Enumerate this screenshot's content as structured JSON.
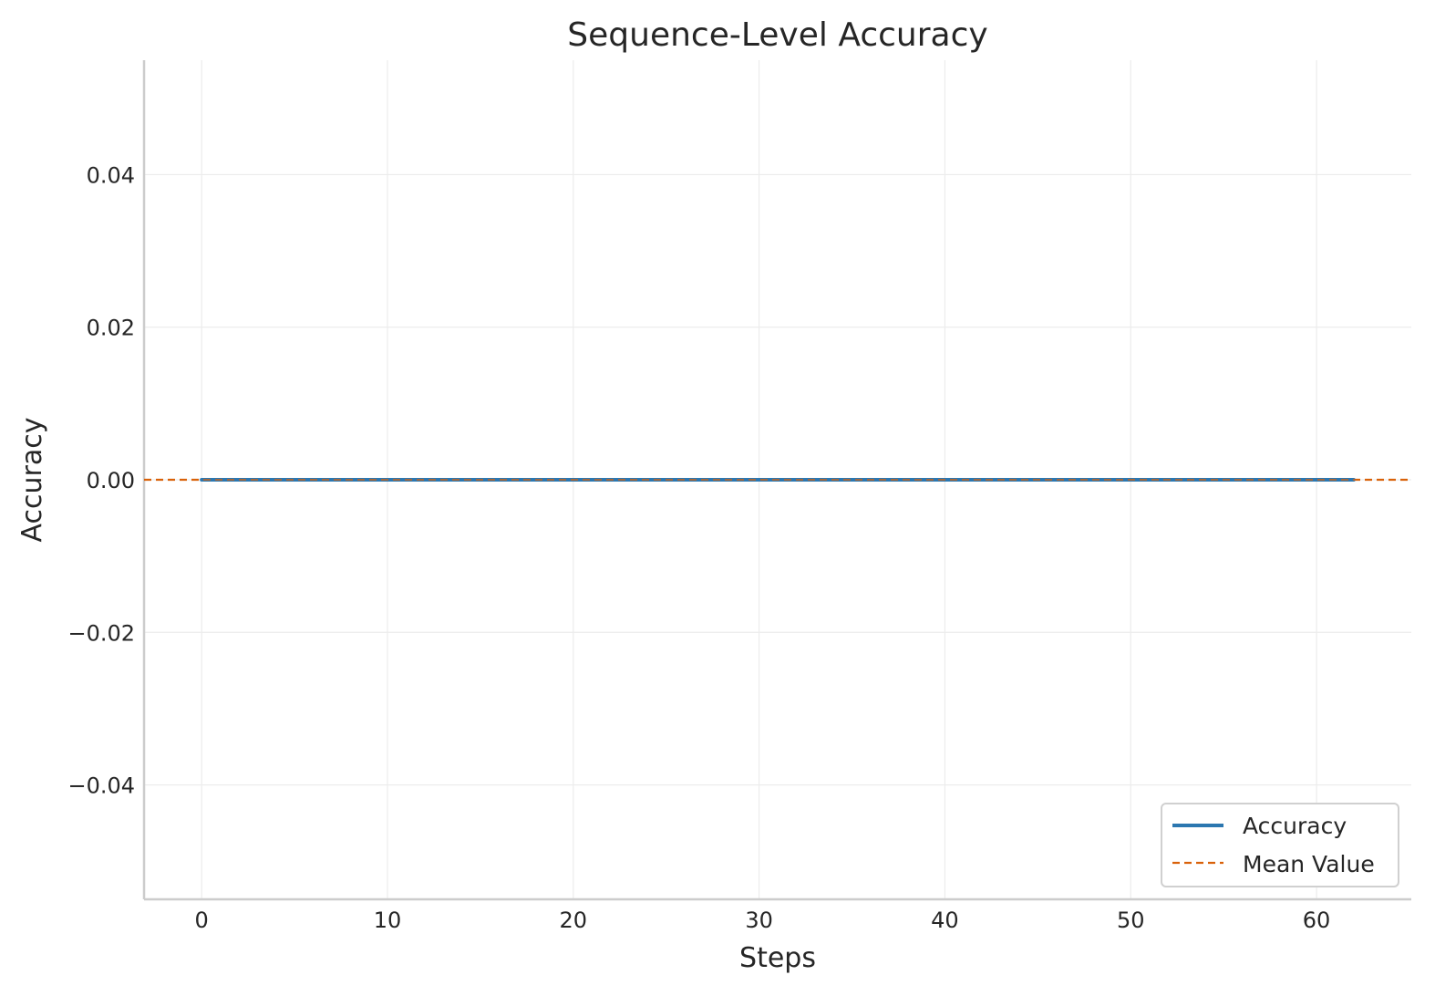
{
  "chart_data": {
    "type": "line",
    "title": "Sequence-Level Accuracy",
    "xlabel": "Steps",
    "ylabel": "Accuracy",
    "xlim": [
      -3.1,
      65.1
    ],
    "ylim": [
      -0.055,
      0.055
    ],
    "x_ticks": [
      0,
      10,
      20,
      30,
      40,
      50,
      60
    ],
    "x_tick_labels": [
      "0",
      "10",
      "20",
      "30",
      "40",
      "50",
      "60"
    ],
    "y_ticks": [
      0.04,
      0.02,
      0.0,
      -0.02,
      -0.04
    ],
    "y_tick_labels": [
      "0.04",
      "0.02",
      "0.00",
      "−0.02",
      "−0.04"
    ],
    "grid": true,
    "legend_position": "lower-right",
    "series": [
      {
        "name": "Accuracy",
        "color": "#2c77b0",
        "style": "solid",
        "x": [
          0,
          1,
          2,
          3,
          4,
          5,
          6,
          7,
          8,
          9,
          10,
          11,
          12,
          13,
          14,
          15,
          16,
          17,
          18,
          19,
          20,
          21,
          22,
          23,
          24,
          25,
          26,
          27,
          28,
          29,
          30,
          31,
          32,
          33,
          34,
          35,
          36,
          37,
          38,
          39,
          40,
          41,
          42,
          43,
          44,
          45,
          46,
          47,
          48,
          49,
          50,
          51,
          52,
          53,
          54,
          55,
          56,
          57,
          58,
          59,
          60,
          61,
          62
        ],
        "y": [
          0,
          0,
          0,
          0,
          0,
          0,
          0,
          0,
          0,
          0,
          0,
          0,
          0,
          0,
          0,
          0,
          0,
          0,
          0,
          0,
          0,
          0,
          0,
          0,
          0,
          0,
          0,
          0,
          0,
          0,
          0,
          0,
          0,
          0,
          0,
          0,
          0,
          0,
          0,
          0,
          0,
          0,
          0,
          0,
          0,
          0,
          0,
          0,
          0,
          0,
          0,
          0,
          0,
          0,
          0,
          0,
          0,
          0,
          0,
          0,
          0,
          0,
          0
        ]
      }
    ],
    "reference_lines": [
      {
        "name": "Mean Value",
        "orientation": "horizontal",
        "y": 0.0,
        "color": "#d9620b",
        "style": "dashed"
      }
    ]
  }
}
